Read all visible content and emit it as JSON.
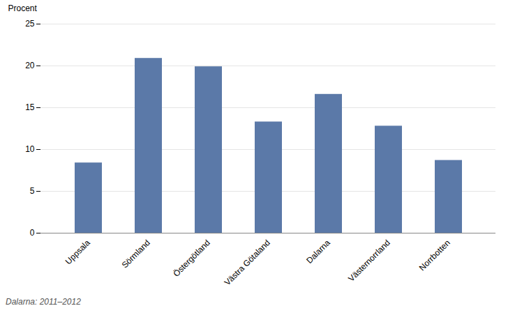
{
  "chart_data": {
    "type": "bar",
    "categories": [
      "Uppsala",
      "Sörmland",
      "Östergötland",
      "Västra Götaland",
      "Dalarna",
      "Västernorrland",
      "Norrbotten"
    ],
    "values": [
      8.4,
      20.9,
      19.9,
      13.3,
      16.6,
      12.8,
      8.7
    ],
    "color": "#5b79a8",
    "ylabel": "Procent",
    "ylim": [
      0,
      25
    ],
    "yticks": [
      0,
      5,
      10,
      15,
      20,
      25
    ],
    "grid": true,
    "footnote": "Dalarna: 2011–2012"
  }
}
